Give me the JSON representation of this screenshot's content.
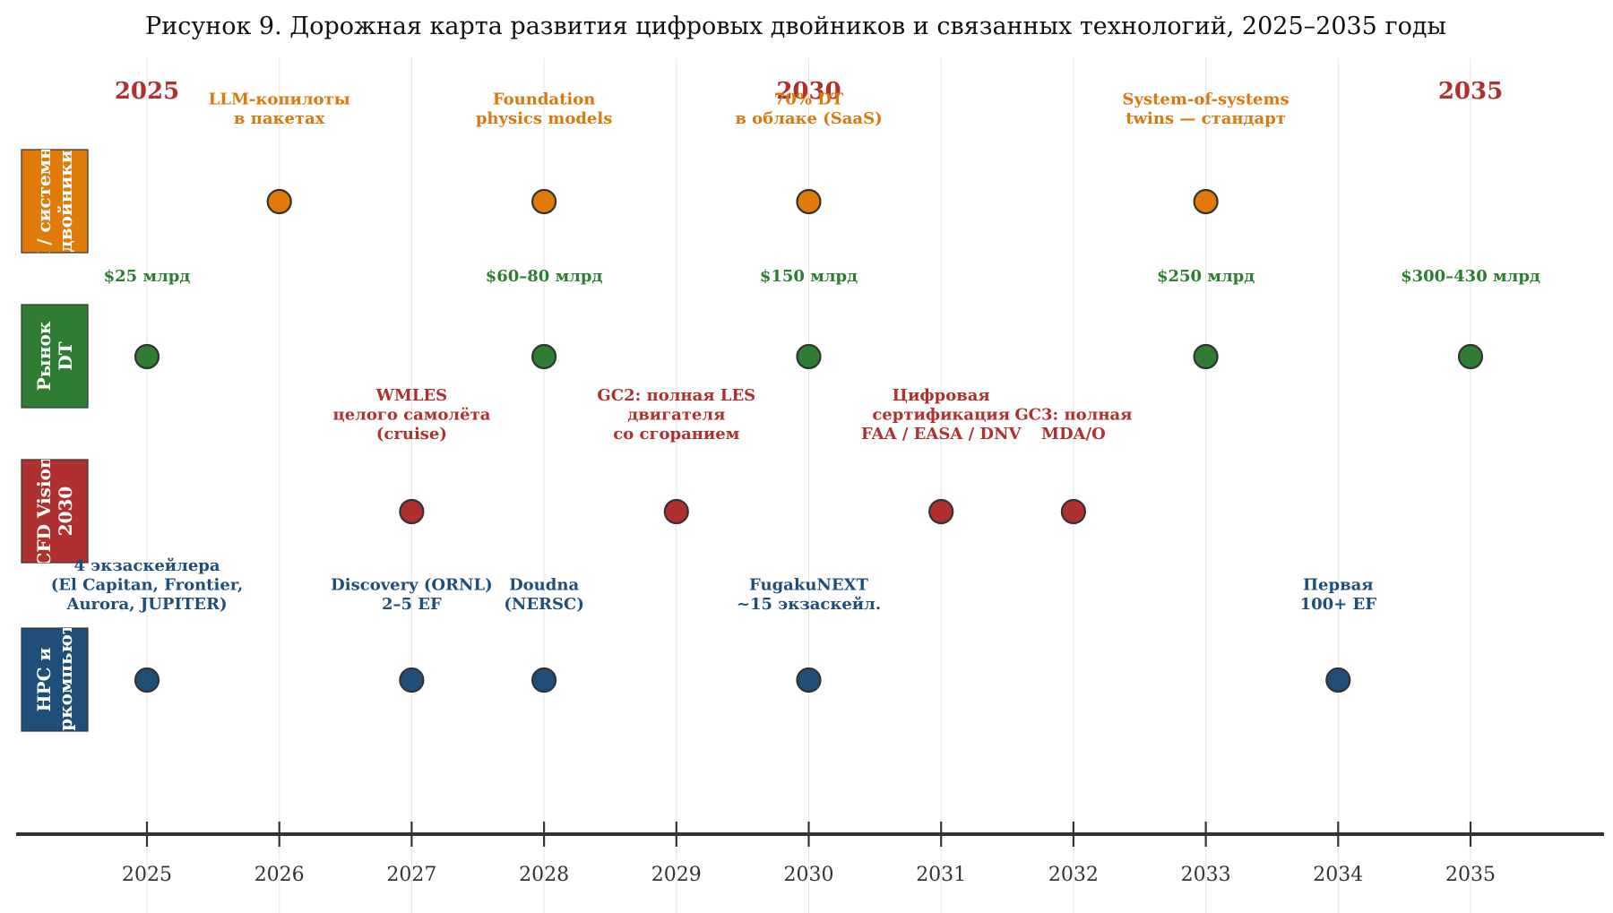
{
  "chart_data": {
    "type": "scatter",
    "title": "Рисунок 9. Дорожная карта развития цифровых двойников и связанных технологий, 2025–2035 годы",
    "xlim": [
      2024,
      2036
    ],
    "x_ticks": [
      2025,
      2026,
      2027,
      2028,
      2029,
      2030,
      2031,
      2032,
      2033,
      2034,
      2035
    ],
    "highlight_years": [
      {
        "x": 2025,
        "label": "2025"
      },
      {
        "x": 2030,
        "label": "2030"
      },
      {
        "x": 2035,
        "label": "2035"
      }
    ],
    "colors": {
      "highlight": "#b03030",
      "axis": "#333333",
      "grid": "#e6e6e6"
    },
    "grid": true,
    "lanes": [
      {
        "id": "ai",
        "label_lines": [
          "ИИ / системные",
          "двойники"
        ],
        "color": "#e07b0b",
        "label_color": "#d9790f",
        "points": [
          {
            "x": 2026,
            "label": [
              "LLM-копилоты",
              "в пакетах"
            ]
          },
          {
            "x": 2028,
            "label": [
              "Foundation",
              "physics models"
            ]
          },
          {
            "x": 2030,
            "label": [
              "70% DT",
              "в облаке (SaaS)"
            ]
          },
          {
            "x": 2033,
            "label": [
              "System-of-systems",
              "twins — стандарт"
            ]
          }
        ]
      },
      {
        "id": "market",
        "label_lines": [
          "Рынок",
          "DT"
        ],
        "color": "#2e7d32",
        "label_color": "#2e7d32",
        "points": [
          {
            "x": 2025,
            "label": [
              "$25 млрд"
            ]
          },
          {
            "x": 2028,
            "label": [
              "$60–80 млрд"
            ]
          },
          {
            "x": 2030,
            "label": [
              "$150 млрд"
            ]
          },
          {
            "x": 2033,
            "label": [
              "$250 млрд"
            ]
          },
          {
            "x": 2035,
            "label": [
              "$300–430 млрд"
            ]
          }
        ]
      },
      {
        "id": "cfd",
        "label_lines": [
          "CFD Vision",
          "2030"
        ],
        "color": "#b03030",
        "label_color": "#b03030",
        "points": [
          {
            "x": 2027,
            "label": [
              "WMLES",
              "целого самолёта",
              "(cruise)"
            ]
          },
          {
            "x": 2029,
            "label": [
              "GC2: полная LES",
              "двигателя",
              "со сгоранием"
            ]
          },
          {
            "x": 2031,
            "label": [
              "Цифровая",
              "сертификация",
              "FAA / EASA / DNV"
            ]
          },
          {
            "x": 2032,
            "label": [
              "GC3: полная",
              "MDA/O"
            ]
          }
        ]
      },
      {
        "id": "hpc",
        "label_lines": [
          "HPC и",
          "суперкомпьютеры"
        ],
        "color": "#1f4e79",
        "label_color": "#1f4e79",
        "points": [
          {
            "x": 2025,
            "label": [
              "4 экзаскейлера",
              "(El Capitan, Frontier,",
              "Aurora, JUPITER)"
            ]
          },
          {
            "x": 2027,
            "label": [
              "Discovery (ORNL)",
              "2–5 EF"
            ]
          },
          {
            "x": 2028,
            "label": [
              "Doudna",
              "(NERSC)"
            ]
          },
          {
            "x": 2030,
            "label": [
              "FugakuNEXT",
              "~15 экзаскейл."
            ]
          },
          {
            "x": 2034,
            "label": [
              "Первая",
              "100+ EF"
            ]
          }
        ]
      }
    ]
  }
}
